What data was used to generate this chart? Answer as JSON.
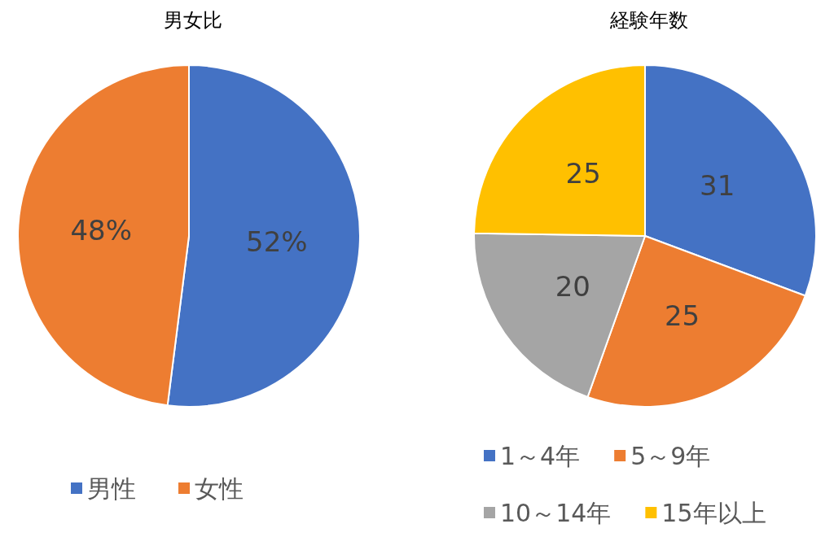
{
  "chart_data": [
    {
      "type": "pie",
      "title": "男女比",
      "categories": [
        "男性",
        "女性"
      ],
      "values": [
        52,
        48
      ],
      "colors": [
        "#4472c4",
        "#ed7d31"
      ],
      "value_labels": [
        "52%",
        "48%"
      ],
      "legend": "bottom"
    },
    {
      "type": "pie",
      "title": "経験年数",
      "categories": [
        "1～4年",
        "5～9年",
        "10～14年",
        "15年以上"
      ],
      "values": [
        31,
        25,
        20,
        25
      ],
      "colors": [
        "#4472c4",
        "#ed7d31",
        "#a5a5a5",
        "#ffc000"
      ],
      "data_labels": true,
      "legend": "bottom"
    }
  ]
}
